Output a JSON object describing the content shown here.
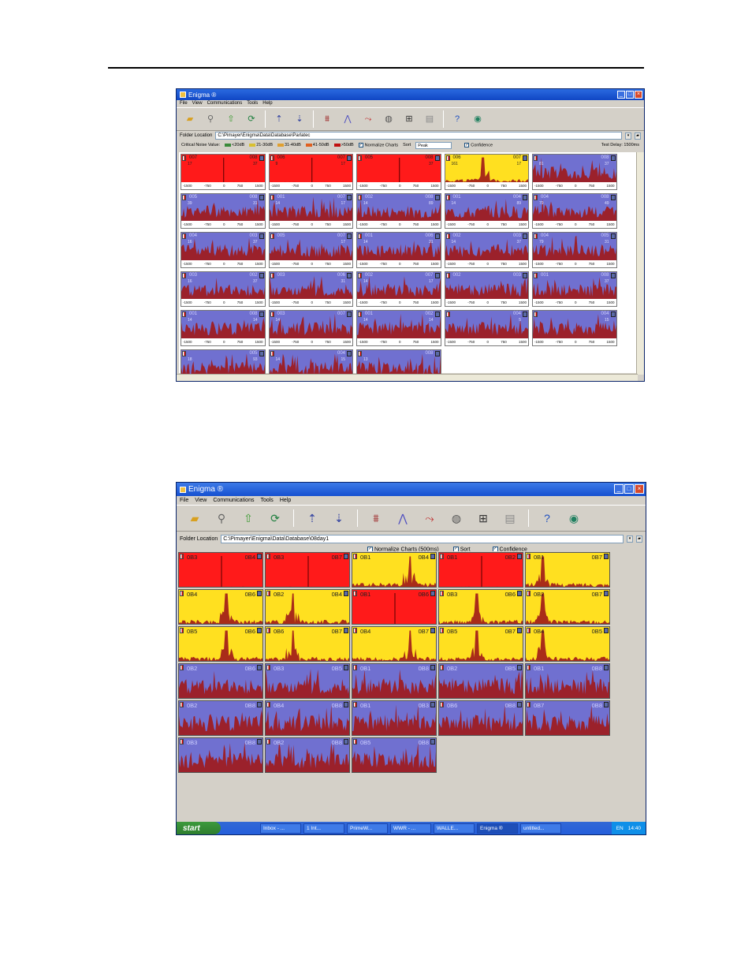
{
  "page": {
    "rule": ""
  },
  "screen1": {
    "title": "Enigma ®",
    "menu": [
      "File",
      "View",
      "Communications",
      "Tools",
      "Help"
    ],
    "toolbar_icons": [
      "open-folder-icon",
      "search-icon",
      "upload-icon",
      "refresh-icon",
      "upload-spectra-icon",
      "download-spectra-icon",
      "spectrum-icon",
      "peak-icon",
      "filter-icon",
      "disc-icon",
      "network-icon",
      "print-icon",
      "help-icon",
      "globe-icon"
    ],
    "folder_label": "Folder Location",
    "folder_value": "C:\\Pimayer\\Enigma\\Data\\Database\\Parlatec",
    "noise_label": "Critical Noise Value:",
    "noise_legend": [
      {
        "label": "<20dB",
        "color": "#3a8a3a"
      },
      {
        "label": "21-30dB",
        "color": "#d8c030"
      },
      {
        "label": "31-40dB",
        "color": "#e0a030"
      },
      {
        "label": "41-50dB",
        "color": "#e06020"
      },
      {
        "label": ">50dB",
        "color": "#c01010"
      }
    ],
    "normalize_label": "Normalize Charts",
    "sort_label": "Sort",
    "sort_value": "Peak",
    "confidence_label": "Confidence",
    "test_delay": "Test Delay: 1500ms",
    "axis_ticks": [
      "-1500",
      "-750",
      "0",
      "750",
      "1500"
    ],
    "cells": [
      {
        "c": "red",
        "a": "007",
        "b": "008",
        "s1": "17",
        "s2": "37"
      },
      {
        "c": "red",
        "a": "006",
        "b": "007",
        "s1": "9",
        "s2": "17"
      },
      {
        "c": "red",
        "a": "005",
        "b": "008",
        "s1": "",
        "s2": "37"
      },
      {
        "c": "yellow",
        "a": "006",
        "b": "007",
        "s1": "161",
        "s2": "17"
      },
      {
        "c": "blue",
        "a": "",
        "b": "008",
        "s1": "81",
        "s2": "37"
      },
      {
        "c": "blue",
        "a": "005",
        "b": "008",
        "s1": "39",
        "s2": "31"
      },
      {
        "c": "blue",
        "a": "001",
        "b": "007",
        "s1": "14",
        "s2": "17"
      },
      {
        "c": "blue",
        "a": "002",
        "b": "008",
        "s1": "14",
        "s2": "89"
      },
      {
        "c": "blue",
        "a": "001",
        "b": "004",
        "s1": "14",
        "s2": "89"
      },
      {
        "c": "blue",
        "a": "004",
        "b": "008",
        "s1": "79",
        "s2": "49"
      },
      {
        "c": "blue",
        "a": "004",
        "b": "003",
        "s1": "16",
        "s2": "37"
      },
      {
        "c": "blue",
        "a": "005",
        "b": "007",
        "s1": "",
        "s2": "17"
      },
      {
        "c": "blue",
        "a": "001",
        "b": "006",
        "s1": "14",
        "s2": "31"
      },
      {
        "c": "blue",
        "a": "002",
        "b": "003",
        "s1": "14",
        "s2": "37"
      },
      {
        "c": "blue",
        "a": "004",
        "b": "005",
        "s1": "79",
        "s2": "31"
      },
      {
        "c": "blue",
        "a": "003",
        "b": "002",
        "s1": "16",
        "s2": "37"
      },
      {
        "c": "blue",
        "a": "003",
        "b": "006",
        "s1": "",
        "s2": "31"
      },
      {
        "c": "blue",
        "a": "002",
        "b": "007",
        "s1": "14",
        "s2": "17"
      },
      {
        "c": "blue",
        "a": "002",
        "b": "003",
        "s1": "",
        "s2": ""
      },
      {
        "c": "blue",
        "a": "001",
        "b": "008",
        "s1": "",
        "s2": "37"
      },
      {
        "c": "blue",
        "a": "001",
        "b": "008",
        "s1": "14",
        "s2": "14"
      },
      {
        "c": "blue",
        "a": "003",
        "b": "007",
        "s1": "14",
        "s2": ""
      },
      {
        "c": "blue",
        "a": "001",
        "b": "002",
        "s1": "14",
        "s2": "14"
      },
      {
        "c": "blue",
        "a": "",
        "b": "004",
        "s1": "",
        "s2": "5"
      },
      {
        "c": "blue",
        "a": "",
        "b": "004",
        "s1": "",
        "s2": "15"
      },
      {
        "c": "blue",
        "a": "",
        "b": "005",
        "s1": "18",
        "s2": "93"
      },
      {
        "c": "blue",
        "a": "",
        "b": "004",
        "s1": "14",
        "s2": "15"
      },
      {
        "c": "blue",
        "a": "",
        "b": "008",
        "s1": "13",
        "s2": ""
      }
    ]
  },
  "screen2": {
    "title": "Enigma ®",
    "menu": [
      "File",
      "View",
      "Communications",
      "Tools",
      "Help"
    ],
    "toolbar_icons": [
      "open-folder-icon",
      "search-icon",
      "upload-icon",
      "refresh-icon",
      "upload-spectra-icon",
      "download-spectra-icon",
      "spectrum-icon",
      "peak-icon",
      "filter-icon",
      "disc-icon",
      "network-icon",
      "print-icon",
      "help-icon",
      "globe-icon"
    ],
    "folder_label": "Folder Location",
    "folder_value": "C:\\Pimayer\\Enigma\\Data\\Database\\08day1",
    "normalize_label": "Normalize Charts (500ms)",
    "sort_label": "Sort",
    "confidence_label": "Confidence",
    "cells": [
      {
        "c": "red",
        "a": "0B3",
        "b": "0B4"
      },
      {
        "c": "red",
        "a": "0B3",
        "b": "0B7"
      },
      {
        "c": "yellow",
        "a": "0B1",
        "b": "0B4"
      },
      {
        "c": "red",
        "a": "0B1",
        "b": "0B2"
      },
      {
        "c": "yellow",
        "a": "0B1",
        "b": "0B7"
      },
      {
        "c": "yellow",
        "a": "0B4",
        "b": "0B6"
      },
      {
        "c": "yellow",
        "a": "0B2",
        "b": "0B4"
      },
      {
        "c": "red",
        "a": "0B1",
        "b": "0B6"
      },
      {
        "c": "yellow",
        "a": "0B3",
        "b": "0B6"
      },
      {
        "c": "yellow",
        "a": "0B2",
        "b": "0B7"
      },
      {
        "c": "yellow",
        "a": "0B5",
        "b": "0B6"
      },
      {
        "c": "yellow",
        "a": "0B6",
        "b": "0B7"
      },
      {
        "c": "yellow",
        "a": "0B4",
        "b": "0B7"
      },
      {
        "c": "yellow",
        "a": "0B5",
        "b": "0B7"
      },
      {
        "c": "yellow",
        "a": "0B4",
        "b": "0B5"
      },
      {
        "c": "blue",
        "a": "0B2",
        "b": "0B6"
      },
      {
        "c": "blue",
        "a": "0B3",
        "b": "0B5"
      },
      {
        "c": "blue",
        "a": "0B1",
        "b": "0B8"
      },
      {
        "c": "blue",
        "a": "0B2",
        "b": "0B5"
      },
      {
        "c": "blue",
        "a": "0B1",
        "b": "0B8"
      },
      {
        "c": "blue",
        "a": "0B2",
        "b": "0B8"
      },
      {
        "c": "blue",
        "a": "0B4",
        "b": "0B8"
      },
      {
        "c": "blue",
        "a": "0B1",
        "b": "0B3"
      },
      {
        "c": "blue",
        "a": "0B6",
        "b": "0B8"
      },
      {
        "c": "blue",
        "a": "0B7",
        "b": "0B8"
      },
      {
        "c": "blue",
        "a": "0B3",
        "b": "0B8"
      },
      {
        "c": "blue",
        "a": "0B2",
        "b": "0B8"
      },
      {
        "c": "blue",
        "a": "0B5",
        "b": "0B8"
      }
    ],
    "taskbar": {
      "start": "start",
      "tasks": [
        "Inbox - ...",
        "1 Int...",
        "PrimeW...",
        "WWR - ...",
        "WALLE...",
        "Enigma ®",
        "untitled..."
      ],
      "active_task": 5,
      "lang": "EN",
      "clock": "14:40"
    }
  },
  "colors": {
    "red": "#ff1a1a",
    "yellow": "#ffe020",
    "blue": "#7070d0",
    "signal": "#a01818"
  }
}
